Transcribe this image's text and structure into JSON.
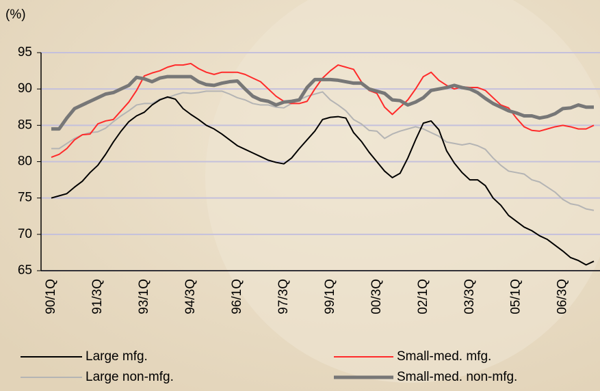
{
  "chart_data": {
    "type": "line",
    "y_label": "(%)",
    "categories": [
      "90/1Q",
      null,
      null,
      null,
      null,
      null,
      "91/3Q",
      null,
      null,
      null,
      null,
      null,
      "93/1Q",
      null,
      null,
      null,
      null,
      null,
      "94/3Q",
      null,
      null,
      null,
      null,
      null,
      "96/1Q",
      null,
      null,
      null,
      null,
      null,
      "97/3Q",
      null,
      null,
      null,
      null,
      null,
      "99/1Q",
      null,
      null,
      null,
      null,
      null,
      "00/3Q",
      null,
      null,
      null,
      null,
      null,
      "02/1Q",
      null,
      null,
      null,
      null,
      null,
      "03/3Q",
      null,
      null,
      null,
      null,
      null,
      "05/1Q",
      null,
      null,
      null,
      null,
      null,
      "06/3Q",
      null,
      null,
      null,
      null
    ],
    "series": [
      {
        "name": "Large mfg.",
        "color": "#000000",
        "line_width": 2,
        "values": [
          75.0,
          75.3,
          75.6,
          76.5,
          77.3,
          78.5,
          79.5,
          81.0,
          82.7,
          84.2,
          85.5,
          86.3,
          86.8,
          87.8,
          88.5,
          88.9,
          88.6,
          87.3,
          86.5,
          85.8,
          85.0,
          84.5,
          83.8,
          83.0,
          82.2,
          81.7,
          81.2,
          80.7,
          80.2,
          79.9,
          79.7,
          80.5,
          81.8,
          83.0,
          84.2,
          85.8,
          86.1,
          86.2,
          86.0,
          84.0,
          82.8,
          81.3,
          80.0,
          78.7,
          77.8,
          78.4,
          80.5,
          83.0,
          85.3,
          85.6,
          84.4,
          81.5,
          79.8,
          78.5,
          77.5,
          77.5,
          76.7,
          75.0,
          74.0,
          72.6,
          71.8,
          71.0,
          70.5,
          69.8,
          69.3,
          68.5,
          67.7,
          66.8,
          66.4,
          65.8,
          66.3
        ]
      },
      {
        "name": "Small-med. mfg.",
        "color": "#ff2a2a",
        "line_width": 2,
        "values": [
          80.6,
          81.0,
          81.8,
          83.0,
          83.7,
          83.8,
          85.2,
          85.6,
          85.8,
          87.0,
          88.2,
          89.8,
          91.8,
          92.2,
          92.5,
          93.0,
          93.3,
          93.3,
          93.5,
          92.8,
          92.3,
          92.0,
          92.3,
          92.3,
          92.3,
          92.0,
          91.5,
          91.0,
          90.0,
          89.0,
          88.3,
          88.0,
          88.0,
          88.3,
          90.0,
          91.5,
          92.5,
          93.3,
          93.0,
          92.7,
          91.0,
          89.8,
          89.4,
          87.5,
          86.5,
          87.5,
          88.5,
          90.0,
          91.7,
          92.3,
          91.2,
          90.5,
          90.0,
          90.3,
          90.2,
          90.2,
          89.8,
          88.8,
          87.8,
          87.4,
          86.0,
          84.8,
          84.3,
          84.2,
          84.5,
          84.8,
          85.0,
          84.8,
          84.5,
          84.5,
          85.0
        ]
      },
      {
        "name": "Large non-mfg.",
        "color": "#b4b4b4",
        "line_width": 2,
        "values": [
          81.8,
          81.8,
          82.5,
          83.2,
          83.7,
          84.0,
          84.1,
          84.6,
          85.5,
          86.3,
          87.0,
          87.8,
          88.0,
          88.0,
          88.6,
          88.8,
          89.2,
          89.5,
          89.4,
          89.5,
          89.7,
          89.7,
          89.7,
          89.3,
          88.8,
          88.5,
          88.0,
          87.8,
          87.8,
          87.5,
          87.4,
          88.0,
          88.5,
          89.0,
          89.3,
          89.6,
          88.5,
          87.8,
          87.0,
          85.8,
          85.2,
          84.3,
          84.2,
          83.2,
          83.8,
          84.2,
          84.5,
          84.8,
          84.5,
          84.0,
          83.5,
          82.7,
          82.5,
          82.3,
          82.5,
          82.2,
          81.7,
          80.5,
          79.5,
          78.7,
          78.5,
          78.3,
          77.5,
          77.2,
          76.5,
          75.8,
          74.8,
          74.2,
          74.0,
          73.5,
          73.3
        ]
      },
      {
        "name": "Small-med. non-mfg.",
        "color": "#777777",
        "line_width": 5,
        "values": [
          84.5,
          84.5,
          86.0,
          87.3,
          87.8,
          88.3,
          88.8,
          89.3,
          89.5,
          90.0,
          90.5,
          91.6,
          91.4,
          91.0,
          91.5,
          91.7,
          91.7,
          91.7,
          91.7,
          91.0,
          90.6,
          90.5,
          90.8,
          91.0,
          91.1,
          90.0,
          89.0,
          88.5,
          88.3,
          87.8,
          88.2,
          88.3,
          88.5,
          90.2,
          91.3,
          91.3,
          91.3,
          91.2,
          91.0,
          90.8,
          90.8,
          90.0,
          89.7,
          89.4,
          88.5,
          88.4,
          87.8,
          88.2,
          88.8,
          89.8,
          90.0,
          90.2,
          90.5,
          90.2,
          90.0,
          89.5,
          88.7,
          88.0,
          87.5,
          87.0,
          86.7,
          86.3,
          86.3,
          86.0,
          86.2,
          86.6,
          87.3,
          87.4,
          87.8,
          87.5,
          87.5
        ]
      }
    ],
    "ylim": [
      65,
      95
    ],
    "yticks": [
      65,
      70,
      75,
      80,
      85,
      90,
      95
    ],
    "grid": true,
    "legend": "bottom"
  }
}
